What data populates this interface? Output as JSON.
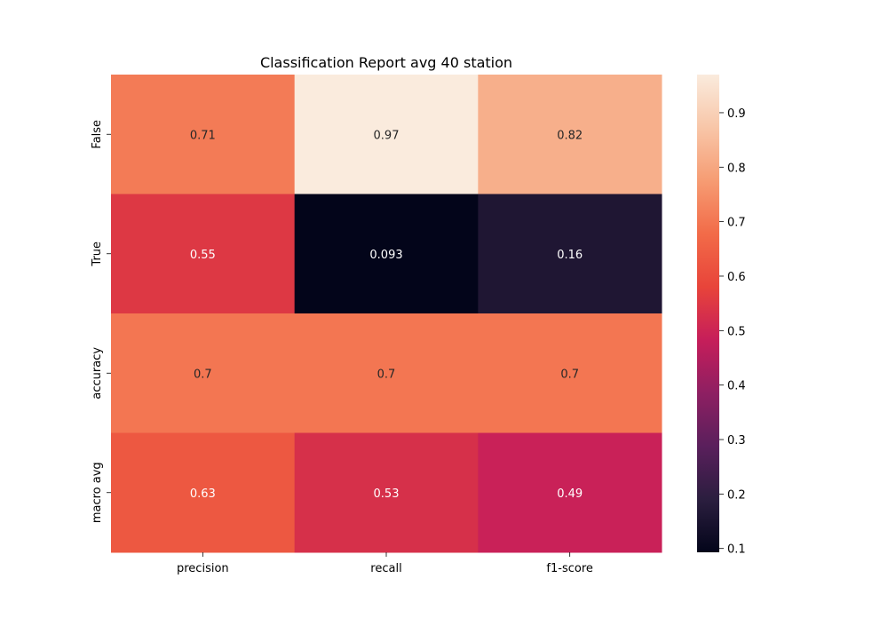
{
  "chart_data": {
    "type": "heatmap",
    "title": "Classification Report avg 40 station",
    "xlabel": "",
    "ylabel": "",
    "x_categories": [
      "precision",
      "recall",
      "f1-score"
    ],
    "y_categories": [
      "False",
      "True",
      "accuracy",
      "macro avg"
    ],
    "values": [
      [
        0.71,
        0.97,
        0.82
      ],
      [
        0.55,
        0.093,
        0.16
      ],
      [
        0.7,
        0.7,
        0.7
      ],
      [
        0.63,
        0.53,
        0.49
      ]
    ],
    "cell_labels": [
      [
        "0.71",
        "0.97",
        "0.82"
      ],
      [
        "0.55",
        "0.093",
        "0.16"
      ],
      [
        "0.7",
        "0.7",
        "0.7"
      ],
      [
        "0.63",
        "0.53",
        "0.49"
      ]
    ],
    "colorbar": {
      "range": [
        0.093,
        0.97
      ],
      "ticks": [
        0.1,
        0.2,
        0.3,
        0.4,
        0.5,
        0.6,
        0.7,
        0.8,
        0.9
      ],
      "tick_labels": [
        "0.1",
        "0.2",
        "0.3",
        "0.4",
        "0.5",
        "0.6",
        "0.7",
        "0.8",
        "0.9"
      ],
      "colormap": "rocket"
    },
    "colors": {
      "colormap_stops": [
        "#03051a",
        "#2b1e3f",
        "#5a1f5c",
        "#8e1f62",
        "#c61e5a",
        "#e8443a",
        "#f26b48",
        "#f69c73",
        "#f8c6a8",
        "#faebdd"
      ],
      "label_light": "#ffffff",
      "label_dark": "#262626",
      "axis": "#000000"
    },
    "grid": false,
    "legend": "none"
  }
}
